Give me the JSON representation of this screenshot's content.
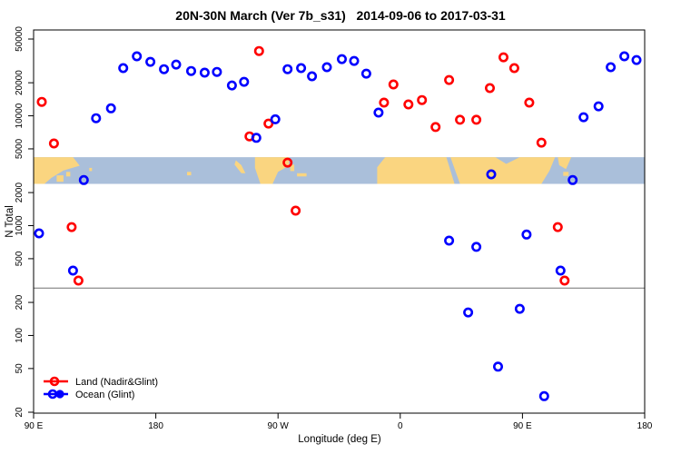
{
  "title": "20N-30N March (Ver 7b_s31)   2014-09-06 to 2017-03-31",
  "axes": {
    "y": {
      "label": "N Total",
      "scale": "log",
      "range": [
        20,
        50000
      ],
      "ticks": [
        20,
        50,
        100,
        200,
        500,
        1000,
        2000,
        5000,
        10000,
        20000,
        50000
      ],
      "tick_labels": [
        "20",
        "50",
        "100",
        "200",
        "500",
        "1000",
        "2000",
        "5000",
        "10000",
        "20000",
        "50000"
      ]
    },
    "x": {
      "label": "Longitude (deg E)",
      "range_degrees": [
        90,
        540
      ],
      "tick_degrees": [
        90,
        180,
        270,
        360,
        450,
        540
      ],
      "tick_labels": [
        "90 E",
        "180",
        "90 W",
        "0",
        "90 E",
        "180"
      ]
    }
  },
  "reference_line": {
    "value": 270,
    "color": "#707070"
  },
  "map_band": {
    "description": "20N-30N latitude world map strip",
    "value_range": [
      2400,
      4200
    ],
    "ocean_color": "#aabfda",
    "land_color": "#fad580",
    "land_shapes": [
      [
        [
          90,
          0
        ],
        [
          119,
          0
        ],
        [
          124,
          0.32
        ],
        [
          112,
          0.5
        ],
        [
          103,
          0.78
        ],
        [
          98,
          1
        ],
        [
          90,
          1
        ]
      ],
      [
        [
          107,
          0.68
        ],
        [
          112,
          0.68
        ],
        [
          112,
          0.92
        ],
        [
          107,
          0.92
        ]
      ],
      [
        [
          114,
          0.55
        ],
        [
          117,
          0.55
        ],
        [
          117,
          0.72
        ],
        [
          114,
          0.72
        ]
      ],
      [
        [
          131,
          0.4
        ],
        [
          133,
          0.4
        ],
        [
          133,
          0.52
        ],
        [
          131,
          0.52
        ]
      ],
      [
        [
          203,
          0.55
        ],
        [
          206,
          0.55
        ],
        [
          206,
          0.68
        ],
        [
          203,
          0.68
        ]
      ],
      [
        [
          239,
          0.12
        ],
        [
          243,
          0.3
        ],
        [
          246,
          0.6
        ],
        [
          243,
          0.6
        ],
        [
          238,
          0.28
        ]
      ],
      [
        [
          253,
          0
        ],
        [
          278,
          0
        ],
        [
          278,
          0.32
        ],
        [
          270,
          0.55
        ],
        [
          266,
          1
        ],
        [
          257,
          1
        ],
        [
          253,
          0.4
        ]
      ],
      [
        [
          279,
          0.28
        ],
        [
          282,
          0.28
        ],
        [
          282,
          0.52
        ],
        [
          279,
          0.52
        ]
      ],
      [
        [
          284,
          0.6
        ],
        [
          291,
          0.6
        ],
        [
          291,
          0.72
        ],
        [
          284,
          0.72
        ]
      ],
      [
        [
          349,
          0
        ],
        [
          394,
          0
        ],
        [
          400,
          1
        ],
        [
          343,
          1
        ],
        [
          343,
          0.38
        ],
        [
          347,
          0.12
        ]
      ],
      [
        [
          397,
          0
        ],
        [
          430,
          0
        ],
        [
          438,
          0.25
        ],
        [
          444,
          0.1
        ],
        [
          448,
          0
        ],
        [
          474,
          0
        ],
        [
          470,
          0.5
        ],
        [
          464,
          1
        ],
        [
          404,
          1
        ]
      ],
      [
        [
          476,
          0
        ],
        [
          486,
          0
        ],
        [
          482,
          0.45
        ],
        [
          477,
          0.3
        ]
      ],
      [
        [
          480,
          0.55
        ],
        [
          484,
          0.55
        ],
        [
          484,
          0.7
        ],
        [
          480,
          0.7
        ]
      ]
    ]
  },
  "legend": {
    "items": [
      {
        "label": "Land (Nadir&Glint)",
        "color": "#ff0000"
      },
      {
        "label": "Ocean (Glint)",
        "color": "#0000ff"
      }
    ]
  },
  "chart_data": {
    "type": "scatter",
    "title": "20N-30N March (Ver 7b_s31)   2014-09-06 to 2017-03-31",
    "xlabel": "Longitude (deg E)",
    "ylabel": "N Total",
    "x_axis_note": "longitude along axis, degrees east from 90 (wraps 90E-180-90W-0-90E-180)",
    "ylim": [
      20,
      50000
    ],
    "series": [
      {
        "name": "Land (Nadir&Glint)",
        "color": "#ff0000",
        "points": [
          [
            96,
            13400
          ],
          [
            105,
            5600
          ],
          [
            118,
            970
          ],
          [
            123,
            316
          ],
          [
            249,
            6500
          ],
          [
            256,
            38900
          ],
          [
            263,
            8500
          ],
          [
            277,
            3750
          ],
          [
            283,
            1370
          ],
          [
            348,
            13200
          ],
          [
            355,
            19300
          ],
          [
            366,
            12700
          ],
          [
            376,
            13900
          ],
          [
            386,
            7900
          ],
          [
            396,
            21200
          ],
          [
            404,
            9200
          ],
          [
            416,
            9200
          ],
          [
            426,
            17900
          ],
          [
            436,
            34100
          ],
          [
            444,
            27200
          ],
          [
            455,
            13200
          ],
          [
            464,
            5700
          ],
          [
            476,
            970
          ],
          [
            481,
            316
          ]
        ]
      },
      {
        "name": "Ocean (Glint)",
        "color": "#0000ff",
        "points": [
          [
            94,
            850
          ],
          [
            119,
            390
          ],
          [
            127,
            2600
          ],
          [
            136,
            9500
          ],
          [
            147,
            11700
          ],
          [
            156,
            27200
          ],
          [
            166,
            34800
          ],
          [
            176,
            31000
          ],
          [
            186,
            26600
          ],
          [
            195,
            29300
          ],
          [
            206,
            25600
          ],
          [
            216,
            24700
          ],
          [
            225,
            25100
          ],
          [
            236,
            18900
          ],
          [
            245,
            20400
          ],
          [
            254,
            6300
          ],
          [
            268,
            9300
          ],
          [
            277,
            26600
          ],
          [
            287,
            27200
          ],
          [
            295,
            22900
          ],
          [
            306,
            27700
          ],
          [
            317,
            32800
          ],
          [
            326,
            31600
          ],
          [
            335,
            24200
          ],
          [
            344,
            10700
          ],
          [
            396,
            730
          ],
          [
            410,
            162
          ],
          [
            416,
            640
          ],
          [
            427,
            2930
          ],
          [
            432,
            52
          ],
          [
            448,
            175
          ],
          [
            453,
            830
          ],
          [
            466,
            28
          ],
          [
            478,
            390
          ],
          [
            487,
            2600
          ],
          [
            495,
            9700
          ],
          [
            506,
            12200
          ],
          [
            515,
            27700
          ],
          [
            525,
            34800
          ],
          [
            534,
            32200
          ]
        ]
      }
    ]
  }
}
